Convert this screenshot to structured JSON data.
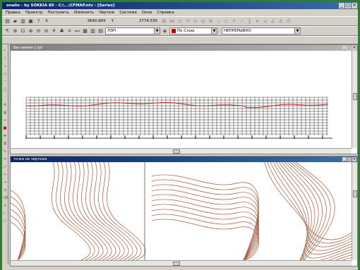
{
  "window": {
    "title": "onalio - by SOKKIA 80 - C:\\...\\CFMAP.ntv - [Series]",
    "controls": [
      "_",
      "□",
      "✕"
    ]
  },
  "menu": {
    "items": [
      "Правка",
      "Проектр",
      "Построить",
      "Изменить",
      "Чертеж",
      "Система",
      "Окно",
      "Справка"
    ]
  },
  "toolbar": {
    "x_label": "X",
    "x_value": "3640.665",
    "y_label": "Y",
    "y_value": "2774.535",
    "layer_value": "ЛЭП",
    "color_value": "По Слою",
    "linetype_value": "НЕПРЕРЫВНО"
  },
  "documents": [
    {
      "title": "Без имени-1.tpf",
      "controls": [
        "_",
        "□",
        "✕"
      ],
      "active": false
    },
    {
      "title": "точки на чертеже",
      "controls": [
        "_",
        "□",
        "✕"
      ],
      "active": true
    }
  ],
  "colors": {
    "profile_line": "#c02020",
    "contour_line": "#a05a3c",
    "grid_line": "#000000"
  }
}
